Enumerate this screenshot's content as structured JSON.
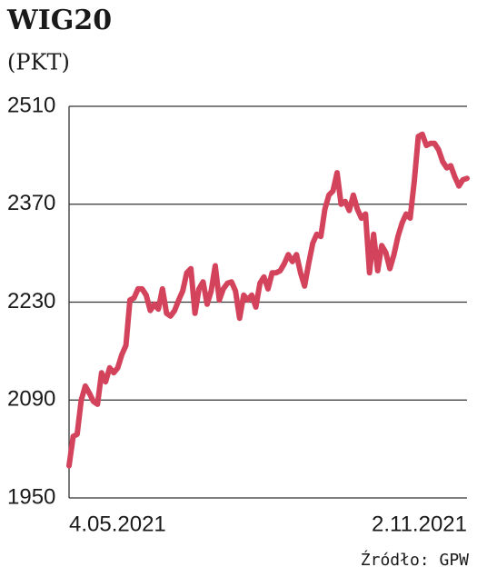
{
  "chart_data": {
    "type": "line",
    "title": "WIG20",
    "subtitle": "(PKT)",
    "source": "Źródło: GPW",
    "categories": [
      "4.05.2021",
      null,
      null,
      null,
      null,
      null,
      null,
      null,
      null,
      null,
      null,
      null,
      null,
      null,
      null,
      null,
      null,
      null,
      null,
      null,
      null,
      null,
      null,
      null,
      null,
      null,
      null,
      null,
      null,
      null,
      null,
      null,
      null,
      null,
      null,
      null,
      null,
      null,
      null,
      null,
      null,
      null,
      null,
      null,
      null,
      null,
      null,
      null,
      null,
      null,
      null,
      null,
      null,
      null,
      null,
      null,
      null,
      null,
      null,
      null,
      null,
      null,
      null,
      null,
      null,
      null,
      null,
      null,
      null,
      null,
      null,
      null,
      null,
      null,
      null,
      null,
      null,
      null,
      null,
      null,
      null,
      null,
      null,
      null,
      null,
      null,
      null,
      null,
      null,
      null,
      null,
      null,
      null,
      null,
      null,
      null,
      null,
      null,
      "2.11.2021"
    ],
    "series": [
      {
        "name": "WIG20",
        "color": "#d4435c",
        "values": [
          1996,
          2038,
          2041,
          2090,
          2110,
          2100,
          2088,
          2084,
          2129,
          2116,
          2136,
          2129,
          2136,
          2155,
          2168,
          2233,
          2236,
          2249,
          2249,
          2240,
          2218,
          2227,
          2220,
          2249,
          2214,
          2210,
          2218,
          2233,
          2246,
          2272,
          2278,
          2214,
          2249,
          2259,
          2227,
          2246,
          2282,
          2233,
          2249,
          2257,
          2259,
          2246,
          2207,
          2240,
          2233,
          2240,
          2223,
          2257,
          2266,
          2249,
          2272,
          2272,
          2275,
          2285,
          2298,
          2288,
          2298,
          2272,
          2253,
          2285,
          2314,
          2327,
          2324,
          2363,
          2383,
          2389,
          2415,
          2370,
          2374,
          2361,
          2383,
          2363,
          2350,
          2356,
          2272,
          2327,
          2275,
          2311,
          2301,
          2278,
          2298,
          2324,
          2343,
          2356,
          2350,
          2402,
          2467,
          2470,
          2454,
          2457,
          2457,
          2448,
          2431,
          2422,
          2425,
          2409,
          2396,
          2405,
          2407
        ]
      }
    ],
    "ylim": [
      1950,
      2510
    ],
    "yticks": [
      1950,
      2090,
      2230,
      2370,
      2510
    ],
    "grid": true
  }
}
